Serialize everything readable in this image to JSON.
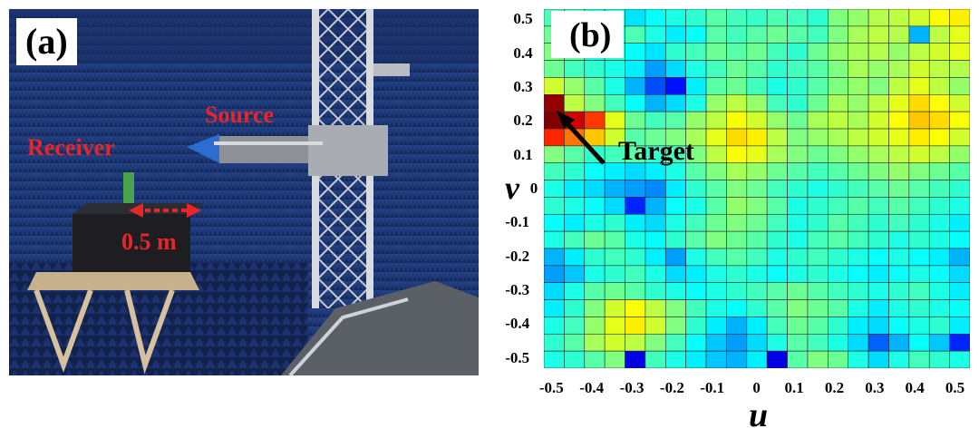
{
  "panel_a": {
    "label": "(a)",
    "source_label": "Source",
    "receiver_label": "Receiver",
    "distance_label": "0.5 m"
  },
  "panel_b": {
    "label": "(b)",
    "target_label": "Target",
    "colormap": "jet"
  },
  "chart_data": {
    "type": "heatmap",
    "xlabel": "u",
    "ylabel": "v",
    "xlim": [
      -0.53,
      0.53
    ],
    "ylim": [
      -0.53,
      0.53
    ],
    "x_ticks": [
      "-0.5",
      "-0.4",
      "-0.3",
      "-0.2",
      "-0.1",
      "0",
      "0.1",
      "0.2",
      "0.3",
      "0.4",
      "0.5"
    ],
    "y_ticks": [
      "0.5",
      "0.4",
      "0.3",
      "0.2",
      "0.1",
      "0",
      "-0.1",
      "-0.2",
      "-0.3",
      "-0.4",
      "-0.5"
    ],
    "grid_rows": 21,
    "grid_cols": 21,
    "value_range": [
      0,
      1
    ],
    "values": [
      [
        0.45,
        0.45,
        0.4,
        0.42,
        0.35,
        0.38,
        0.4,
        0.42,
        0.46,
        0.44,
        0.43,
        0.45,
        0.44,
        0.42,
        0.5,
        0.52,
        0.55,
        0.56,
        0.58,
        0.62,
        0.64
      ],
      [
        0.48,
        0.42,
        0.38,
        0.4,
        0.45,
        0.4,
        0.36,
        0.38,
        0.46,
        0.44,
        0.46,
        0.48,
        0.46,
        0.44,
        0.5,
        0.54,
        0.56,
        0.55,
        0.3,
        0.56,
        0.6
      ],
      [
        0.5,
        0.47,
        0.4,
        0.42,
        0.38,
        0.35,
        0.42,
        0.44,
        0.48,
        0.46,
        0.48,
        0.44,
        0.42,
        0.48,
        0.52,
        0.54,
        0.55,
        0.52,
        0.56,
        0.58,
        0.6
      ],
      [
        0.48,
        0.44,
        0.42,
        0.4,
        0.36,
        0.28,
        0.34,
        0.4,
        0.44,
        0.48,
        0.46,
        0.42,
        0.44,
        0.46,
        0.5,
        0.54,
        0.52,
        0.54,
        0.58,
        0.56,
        0.55
      ],
      [
        0.58,
        0.52,
        0.46,
        0.4,
        0.3,
        0.2,
        0.14,
        0.36,
        0.46,
        0.48,
        0.44,
        0.4,
        0.42,
        0.46,
        0.5,
        0.52,
        0.5,
        0.56,
        0.6,
        0.56,
        0.52
      ],
      [
        0.98,
        0.56,
        0.5,
        0.44,
        0.38,
        0.3,
        0.34,
        0.4,
        0.52,
        0.56,
        0.52,
        0.44,
        0.42,
        0.48,
        0.54,
        0.52,
        0.56,
        0.6,
        0.66,
        0.62,
        0.58
      ],
      [
        1.0,
        0.92,
        0.82,
        0.6,
        0.48,
        0.44,
        0.46,
        0.52,
        0.56,
        0.62,
        0.58,
        0.52,
        0.48,
        0.54,
        0.56,
        0.54,
        0.58,
        0.62,
        0.68,
        0.66,
        0.62
      ],
      [
        0.84,
        0.76,
        0.68,
        0.58,
        0.46,
        0.48,
        0.5,
        0.54,
        0.6,
        0.66,
        0.64,
        0.56,
        0.5,
        0.52,
        0.54,
        0.56,
        0.58,
        0.6,
        0.64,
        0.62,
        0.58
      ],
      [
        0.5,
        0.46,
        0.42,
        0.44,
        0.46,
        0.42,
        0.44,
        0.5,
        0.56,
        0.62,
        0.6,
        0.54,
        0.5,
        0.48,
        0.5,
        0.52,
        0.54,
        0.56,
        0.58,
        0.56,
        0.52
      ],
      [
        0.44,
        0.42,
        0.38,
        0.36,
        0.34,
        0.36,
        0.4,
        0.46,
        0.5,
        0.54,
        0.52,
        0.48,
        0.46,
        0.44,
        0.46,
        0.48,
        0.5,
        0.52,
        0.5,
        0.48,
        0.46
      ],
      [
        0.4,
        0.36,
        0.34,
        0.3,
        0.28,
        0.26,
        0.36,
        0.42,
        0.46,
        0.5,
        0.48,
        0.44,
        0.42,
        0.4,
        0.42,
        0.44,
        0.46,
        0.48,
        0.46,
        0.44,
        0.42
      ],
      [
        0.42,
        0.4,
        0.38,
        0.34,
        0.16,
        0.3,
        0.38,
        0.4,
        0.46,
        0.52,
        0.5,
        0.46,
        0.4,
        0.42,
        0.44,
        0.46,
        0.44,
        0.46,
        0.44,
        0.42,
        0.4
      ],
      [
        0.38,
        0.36,
        0.4,
        0.42,
        0.36,
        0.34,
        0.4,
        0.44,
        0.48,
        0.5,
        0.48,
        0.44,
        0.4,
        0.42,
        0.46,
        0.44,
        0.42,
        0.44,
        0.42,
        0.4,
        0.36
      ],
      [
        0.4,
        0.44,
        0.48,
        0.46,
        0.4,
        0.38,
        0.42,
        0.46,
        0.5,
        0.48,
        0.46,
        0.42,
        0.4,
        0.44,
        0.46,
        0.44,
        0.42,
        0.4,
        0.42,
        0.4,
        0.38
      ],
      [
        0.3,
        0.36,
        0.42,
        0.44,
        0.42,
        0.36,
        0.28,
        0.4,
        0.44,
        0.46,
        0.44,
        0.4,
        0.42,
        0.44,
        0.42,
        0.4,
        0.38,
        0.4,
        0.38,
        0.36,
        0.3
      ],
      [
        0.28,
        0.32,
        0.4,
        0.42,
        0.44,
        0.4,
        0.34,
        0.36,
        0.4,
        0.42,
        0.4,
        0.38,
        0.4,
        0.42,
        0.4,
        0.38,
        0.36,
        0.38,
        0.4,
        0.38,
        0.34
      ],
      [
        0.34,
        0.4,
        0.46,
        0.48,
        0.46,
        0.42,
        0.4,
        0.38,
        0.4,
        0.42,
        0.44,
        0.46,
        0.48,
        0.46,
        0.44,
        0.42,
        0.4,
        0.42,
        0.44,
        0.4,
        0.36
      ],
      [
        0.36,
        0.42,
        0.5,
        0.58,
        0.62,
        0.56,
        0.5,
        0.44,
        0.4,
        0.38,
        0.42,
        0.46,
        0.5,
        0.48,
        0.46,
        0.4,
        0.36,
        0.4,
        0.42,
        0.4,
        0.38
      ],
      [
        0.4,
        0.44,
        0.52,
        0.6,
        0.64,
        0.58,
        0.5,
        0.42,
        0.36,
        0.3,
        0.36,
        0.44,
        0.48,
        0.46,
        0.42,
        0.36,
        0.34,
        0.38,
        0.4,
        0.42,
        0.36
      ],
      [
        0.42,
        0.46,
        0.54,
        0.58,
        0.56,
        0.5,
        0.44,
        0.38,
        0.32,
        0.28,
        0.34,
        0.4,
        0.46,
        0.44,
        0.4,
        0.34,
        0.22,
        0.3,
        0.38,
        0.32,
        0.16
      ],
      [
        0.4,
        0.42,
        0.46,
        0.5,
        0.1,
        0.44,
        0.4,
        0.36,
        0.32,
        0.3,
        0.36,
        0.1,
        0.46,
        0.5,
        0.48,
        0.4,
        0.34,
        0.4,
        0.44,
        0.42,
        0.4
      ]
    ]
  }
}
